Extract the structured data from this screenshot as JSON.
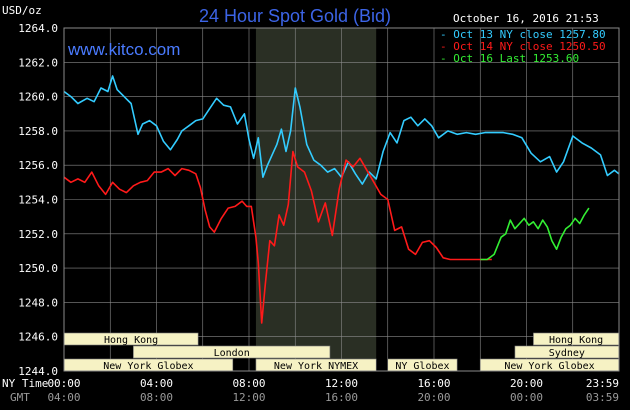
{
  "header": {
    "title": "24 Hour Spot Gold (Bid)",
    "site": "www.kitco.com",
    "unit": "USD/oz",
    "timestamp": "October 16, 2016 21:53"
  },
  "timezones": {
    "primary": "NY Time",
    "secondary": "GMT"
  },
  "x_ticks_ny": [
    "00:00",
    "04:00",
    "08:00",
    "12:00",
    "16:00",
    "20:00",
    "23:59"
  ],
  "x_ticks_gmt": [
    "04:00",
    "08:00",
    "12:00",
    "16:00",
    "20:00",
    "00:00",
    "03:59"
  ],
  "sessions": [
    {
      "label": "Hong Kong",
      "start": 0.0,
      "end": 5.8,
      "row": 0
    },
    {
      "label": "London",
      "start": 3.0,
      "end": 11.5,
      "row": 1
    },
    {
      "label": "New York Globex",
      "start": 0.0,
      "end": 7.3,
      "row": 2
    },
    {
      "label": "New York NYMEX",
      "start": 8.3,
      "end": 13.5,
      "row": 2
    },
    {
      "label": "NY Globex",
      "start": 14.0,
      "end": 17.0,
      "row": 2
    },
    {
      "label": "Hong Kong",
      "start": 20.3,
      "end": 23.99,
      "row": 0
    },
    {
      "label": "Sydney",
      "start": 19.5,
      "end": 23.99,
      "row": 1
    },
    {
      "label": "New York Globex",
      "start": 18.0,
      "end": 23.99,
      "row": 2
    }
  ],
  "colors": {
    "oct13": "#33ccff",
    "oct14": "#ff1a1a",
    "oct16": "#33ee33",
    "grid": "#8a8a8a",
    "shade": "#2a2f24",
    "session_box": "#f6f2c4"
  },
  "chart_data": {
    "type": "line",
    "title": "24 Hour Spot Gold (Bid)",
    "xlabel": "",
    "ylabel": "USD/oz",
    "xlim": [
      0,
      24
    ],
    "ylim": [
      1244.0,
      1264.0
    ],
    "y_ticks": [
      "1244.0",
      "1246.0",
      "1248.0",
      "1250.0",
      "1252.0",
      "1254.0",
      "1256.0",
      "1258.0",
      "1260.0",
      "1262.0",
      "1264.0"
    ],
    "grid": true,
    "highlight": {
      "start": 8.3,
      "end": 13.5
    },
    "legend_position": "top-right",
    "series": [
      {
        "name": "Oct 13 NY close 1257.80",
        "color": "#33ccff",
        "x": [
          0.0,
          0.3,
          0.6,
          1.0,
          1.3,
          1.6,
          1.9,
          2.1,
          2.3,
          2.6,
          2.9,
          3.2,
          3.4,
          3.7,
          4.0,
          4.3,
          4.6,
          4.9,
          5.1,
          5.4,
          5.7,
          6.0,
          6.3,
          6.6,
          6.9,
          7.2,
          7.5,
          7.8,
          8.0,
          8.2,
          8.4,
          8.6,
          8.8,
          9.0,
          9.2,
          9.4,
          9.6,
          9.8,
          10.0,
          10.2,
          10.5,
          10.8,
          11.1,
          11.4,
          11.7,
          12.0,
          12.3,
          12.6,
          12.9,
          13.2,
          13.5,
          13.8,
          14.1,
          14.4,
          14.7,
          15.0,
          15.3,
          15.6,
          15.9,
          16.2,
          16.6,
          17.0,
          17.4,
          17.8,
          18.2,
          18.6,
          19.0,
          19.4,
          19.8,
          20.2,
          20.6,
          21.0,
          21.3,
          21.6,
          22.0,
          22.4,
          22.8,
          23.2,
          23.5,
          23.8,
          23.99
        ],
        "y": [
          1260.3,
          1260.0,
          1259.6,
          1259.9,
          1259.7,
          1260.5,
          1260.3,
          1261.2,
          1260.4,
          1260.0,
          1259.6,
          1257.8,
          1258.4,
          1258.6,
          1258.3,
          1257.4,
          1256.9,
          1257.5,
          1258.0,
          1258.3,
          1258.6,
          1258.7,
          1259.3,
          1259.9,
          1259.5,
          1259.4,
          1258.4,
          1259.0,
          1257.5,
          1256.4,
          1257.6,
          1255.3,
          1256.0,
          1256.6,
          1257.2,
          1258.1,
          1256.8,
          1258.0,
          1260.5,
          1259.4,
          1257.2,
          1256.3,
          1256.0,
          1255.6,
          1255.8,
          1255.3,
          1256.2,
          1255.5,
          1254.9,
          1255.6,
          1255.2,
          1256.8,
          1257.9,
          1257.3,
          1258.6,
          1258.8,
          1258.3,
          1258.7,
          1258.3,
          1257.6,
          1258.0,
          1257.8,
          1257.9,
          1257.8,
          1257.9,
          1257.9,
          1257.9,
          1257.8,
          1257.6,
          1256.7,
          1256.2,
          1256.5,
          1255.6,
          1256.2,
          1257.7,
          1257.3,
          1257.0,
          1256.6,
          1255.4,
          1255.7,
          1255.5
        ]
      },
      {
        "name": "Oct 14 NY close 1250.50",
        "color": "#ff1a1a",
        "x": [
          0.0,
          0.3,
          0.6,
          0.9,
          1.2,
          1.5,
          1.8,
          2.1,
          2.4,
          2.7,
          3.0,
          3.3,
          3.6,
          3.9,
          4.2,
          4.5,
          4.8,
          5.1,
          5.4,
          5.7,
          5.9,
          6.1,
          6.3,
          6.5,
          6.8,
          7.1,
          7.4,
          7.7,
          7.9,
          8.1,
          8.3,
          8.4,
          8.55,
          8.7,
          8.9,
          9.1,
          9.3,
          9.5,
          9.7,
          9.9,
          10.1,
          10.4,
          10.7,
          11.0,
          11.3,
          11.6,
          11.9,
          12.2,
          12.5,
          12.8,
          13.1,
          13.4,
          13.7,
          14.0,
          14.3,
          14.6,
          14.9,
          15.2,
          15.5,
          15.8,
          16.1,
          16.4,
          16.7,
          17.0,
          17.3,
          17.6,
          18.0,
          18.5
        ],
        "y": [
          1255.3,
          1255.0,
          1255.2,
          1255.0,
          1255.6,
          1254.8,
          1254.3,
          1255.0,
          1254.6,
          1254.4,
          1254.8,
          1255.0,
          1255.1,
          1255.6,
          1255.6,
          1255.8,
          1255.4,
          1255.8,
          1255.7,
          1255.5,
          1254.7,
          1253.4,
          1252.4,
          1252.1,
          1252.9,
          1253.5,
          1253.6,
          1253.9,
          1253.6,
          1253.6,
          1251.8,
          1250.3,
          1246.8,
          1249.0,
          1251.6,
          1251.3,
          1253.1,
          1252.5,
          1253.7,
          1256.8,
          1255.9,
          1255.6,
          1254.5,
          1252.7,
          1253.8,
          1251.9,
          1254.6,
          1256.3,
          1255.9,
          1256.4,
          1255.7,
          1255.0,
          1254.3,
          1254.0,
          1252.2,
          1252.4,
          1251.1,
          1250.8,
          1251.5,
          1251.6,
          1251.2,
          1250.6,
          1250.5,
          1250.5,
          1250.5,
          1250.5,
          1250.5,
          1250.5
        ]
      },
      {
        "name": "Oct 16 Last 1253.60",
        "color": "#33ee33",
        "x": [
          18.0,
          18.3,
          18.6,
          18.9,
          19.1,
          19.3,
          19.5,
          19.7,
          19.9,
          20.1,
          20.3,
          20.5,
          20.7,
          20.9,
          21.1,
          21.3,
          21.5,
          21.7,
          21.9,
          22.1,
          22.3,
          22.5,
          22.7
        ],
        "y": [
          1250.5,
          1250.5,
          1250.8,
          1251.8,
          1252.0,
          1252.8,
          1252.3,
          1252.6,
          1252.9,
          1252.5,
          1252.7,
          1252.3,
          1252.8,
          1252.4,
          1251.6,
          1251.1,
          1251.8,
          1252.3,
          1252.5,
          1252.9,
          1252.6,
          1253.1,
          1253.5
        ]
      }
    ]
  }
}
